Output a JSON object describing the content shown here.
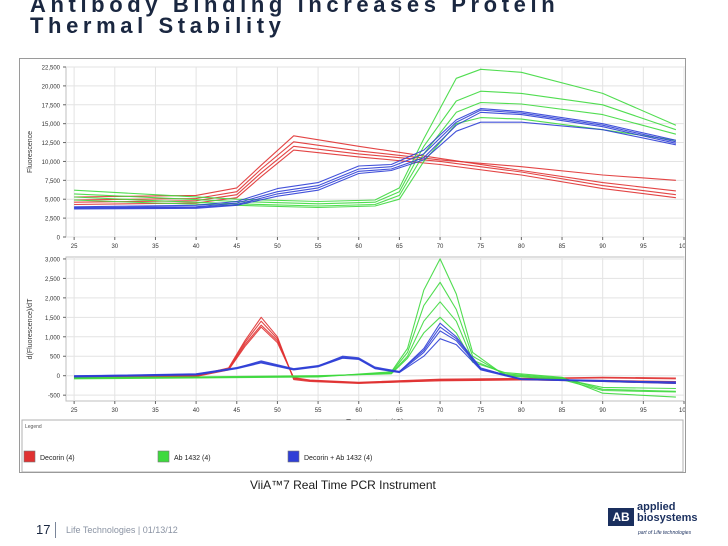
{
  "slide": {
    "title_line1": "Antibody Binding increases Protein",
    "title_line2": "Thermal Stability",
    "caption": "ViiA™7 Real Time PCR Instrument",
    "page_number": "17",
    "footer_text": "Life Technologies | 01/13/12",
    "logo_box": "AB",
    "logo_word1": "applied",
    "logo_word2": "biosystems",
    "logo_sub": "part of Life technologies"
  },
  "legend": {
    "title": "Legend",
    "entries": [
      "Decorin (4)",
      "Ab 1432 (4)",
      "Decorin + Ab 1432 (4)"
    ]
  },
  "colors": {
    "Decorin (4)": "#e03131",
    "Ab 1432 (4)": "#3ed93e",
    "Decorin + Ab 1432 (4)": "#2f3fd6"
  },
  "chart_data": [
    {
      "type": "line",
      "title": "",
      "xlabel": "",
      "ylabel": "Fluorescence",
      "xlim": [
        24,
        100
      ],
      "ylim": [
        0,
        22500
      ],
      "xticks": [
        25,
        30,
        35,
        40,
        45,
        50,
        55,
        60,
        65,
        70,
        75,
        80,
        85,
        90,
        95,
        100
      ],
      "yticks": [
        0,
        2500,
        5000,
        7500,
        10000,
        12500,
        15000,
        17500,
        20000,
        22500
      ],
      "ytick_labels": [
        "0",
        "2,500",
        "5,000",
        "7,500",
        "10,000",
        "12,500",
        "15,000",
        "17,500",
        "20,000",
        "22,500"
      ],
      "grid": true,
      "series": [
        {
          "name": "Decorin (4)",
          "x": [
            25,
            40,
            45,
            48,
            52,
            60,
            70,
            80,
            90,
            99
          ],
          "y": [
            5300,
            5500,
            6500,
            9500,
            13400,
            12000,
            10400,
            8800,
            7200,
            6100
          ]
        },
        {
          "name": "Decorin (4)",
          "x": [
            25,
            40,
            45,
            48,
            52,
            60,
            70,
            80,
            90,
            99
          ],
          "y": [
            4900,
            5100,
            6000,
            9000,
            12600,
            11400,
            10200,
            9300,
            8200,
            7500
          ]
        },
        {
          "name": "Decorin (4)",
          "x": [
            25,
            40,
            45,
            48,
            52,
            60,
            70,
            80,
            90,
            99
          ],
          "y": [
            4600,
            4800,
            5600,
            8500,
            12000,
            11000,
            10000,
            8600,
            6800,
            5600
          ]
        },
        {
          "name": "Decorin (4)",
          "x": [
            25,
            40,
            45,
            48,
            52,
            60,
            70,
            80,
            90,
            99
          ],
          "y": [
            4300,
            4500,
            5200,
            8000,
            11500,
            10600,
            9600,
            8200,
            6400,
            5200
          ]
        },
        {
          "name": "Ab 1432 (4)",
          "x": [
            25,
            35,
            45,
            55,
            62,
            65,
            68,
            72,
            75,
            80,
            90,
            99
          ],
          "y": [
            6200,
            5600,
            5000,
            4700,
            4900,
            6500,
            13000,
            21000,
            22200,
            21800,
            19000,
            14800
          ]
        },
        {
          "name": "Ab 1432 (4)",
          "x": [
            25,
            35,
            45,
            55,
            62,
            65,
            68,
            72,
            75,
            80,
            90,
            99
          ],
          "y": [
            5700,
            5200,
            4700,
            4400,
            4600,
            6000,
            12000,
            18000,
            19300,
            19000,
            17500,
            14200
          ]
        },
        {
          "name": "Ab 1432 (4)",
          "x": [
            25,
            35,
            45,
            55,
            62,
            65,
            68,
            72,
            75,
            80,
            90,
            99
          ],
          "y": [
            5300,
            4800,
            4400,
            4100,
            4300,
            5500,
            11000,
            16500,
            17800,
            17600,
            16200,
            13600
          ]
        },
        {
          "name": "Ab 1432 (4)",
          "x": [
            25,
            35,
            45,
            55,
            62,
            65,
            68,
            72,
            75,
            80,
            90,
            99
          ],
          "y": [
            4900,
            4500,
            4200,
            3900,
            4100,
            5000,
            10000,
            15000,
            15800,
            15600,
            14200,
            12800
          ]
        },
        {
          "name": "Decorin + Ab 1432 (4)",
          "x": [
            25,
            40,
            45,
            50,
            55,
            60,
            64,
            68,
            72,
            75,
            80,
            90,
            99
          ],
          "y": [
            4000,
            4200,
            4700,
            6400,
            7200,
            9400,
            9600,
            11500,
            15500,
            17000,
            16600,
            15000,
            12800
          ]
        },
        {
          "name": "Decorin + Ab 1432 (4)",
          "x": [
            25,
            40,
            45,
            50,
            55,
            60,
            64,
            68,
            72,
            75,
            80,
            90,
            99
          ],
          "y": [
            3900,
            4000,
            4500,
            6000,
            6800,
            9000,
            9300,
            11000,
            15200,
            16800,
            16400,
            14800,
            12600
          ]
        },
        {
          "name": "Decorin + Ab 1432 (4)",
          "x": [
            25,
            40,
            45,
            50,
            55,
            60,
            64,
            68,
            72,
            75,
            80,
            90,
            99
          ],
          "y": [
            3800,
            3900,
            4300,
            5700,
            6500,
            8700,
            9000,
            10500,
            14800,
            16500,
            16200,
            14600,
            12400
          ]
        },
        {
          "name": "Decorin + Ab 1432 (4)",
          "x": [
            25,
            40,
            45,
            50,
            55,
            60,
            64,
            68,
            72,
            75,
            80,
            90,
            99
          ],
          "y": [
            3700,
            3800,
            4200,
            5400,
            6200,
            8400,
            8800,
            10200,
            14000,
            15200,
            15200,
            14200,
            12200
          ]
        }
      ]
    },
    {
      "type": "line",
      "title": "",
      "xlabel": "Temperature (°C)",
      "ylabel": "d(Fluorescence)/dT",
      "xlim": [
        24,
        100
      ],
      "ylim": [
        -650,
        3050
      ],
      "xticks": [
        25,
        30,
        35,
        40,
        45,
        50,
        55,
        60,
        65,
        70,
        75,
        80,
        85,
        90,
        95,
        100
      ],
      "yticks": [
        -500,
        0,
        500,
        1000,
        1500,
        2000,
        2500,
        3000
      ],
      "ytick_labels": [
        "-500",
        "0",
        "500",
        "1,000",
        "1,500",
        "2,000",
        "2,500",
        "3,000"
      ],
      "grid": true,
      "series": [
        {
          "name": "Decorin (4)",
          "x": [
            25,
            40,
            44,
            46,
            48,
            50,
            52,
            54,
            60,
            70,
            80,
            90,
            99
          ],
          "y": [
            -30,
            0,
            200,
            900,
            1500,
            1000,
            -100,
            -150,
            -200,
            -120,
            -100,
            -150,
            -200
          ]
        },
        {
          "name": "Decorin (4)",
          "x": [
            25,
            40,
            44,
            46,
            48,
            50,
            52,
            54,
            60,
            70,
            80,
            90,
            99
          ],
          "y": [
            -40,
            -10,
            180,
            850,
            1400,
            950,
            -80,
            -120,
            -180,
            -100,
            -80,
            -60,
            -80
          ]
        },
        {
          "name": "Decorin (4)",
          "x": [
            25,
            40,
            44,
            46,
            48,
            50,
            52,
            54,
            60,
            70,
            80,
            90,
            99
          ],
          "y": [
            -20,
            10,
            160,
            800,
            1300,
            900,
            -60,
            -130,
            -190,
            -130,
            -110,
            -120,
            -150
          ]
        },
        {
          "name": "Decorin (4)",
          "x": [
            25,
            40,
            44,
            46,
            48,
            50,
            52,
            54,
            60,
            70,
            80,
            90,
            99
          ],
          "y": [
            -50,
            -20,
            150,
            750,
            1250,
            850,
            -50,
            -110,
            -170,
            -90,
            -70,
            -40,
            -60
          ]
        },
        {
          "name": "Ab 1432 (4)",
          "x": [
            25,
            40,
            55,
            64,
            66,
            68,
            70,
            72,
            74,
            78,
            85,
            90,
            99
          ],
          "y": [
            -80,
            -60,
            -30,
            100,
            700,
            2200,
            3000,
            2100,
            600,
            0,
            -100,
            -380,
            -420
          ]
        },
        {
          "name": "Ab 1432 (4)",
          "x": [
            25,
            40,
            55,
            64,
            66,
            68,
            70,
            72,
            74,
            78,
            85,
            90,
            99
          ],
          "y": [
            -60,
            -50,
            -20,
            80,
            600,
            1800,
            2400,
            1700,
            500,
            20,
            -80,
            -300,
            -330
          ]
        },
        {
          "name": "Ab 1432 (4)",
          "x": [
            25,
            40,
            55,
            64,
            66,
            68,
            70,
            72,
            74,
            78,
            85,
            90,
            99
          ],
          "y": [
            -70,
            -40,
            -10,
            60,
            500,
            1400,
            1900,
            1400,
            400,
            50,
            -60,
            -350,
            -400
          ]
        },
        {
          "name": "Ab 1432 (4)",
          "x": [
            25,
            40,
            55,
            64,
            66,
            68,
            70,
            72,
            74,
            78,
            85,
            90,
            99
          ],
          "y": [
            -50,
            -30,
            0,
            50,
            450,
            1100,
            1500,
            1100,
            350,
            80,
            -40,
            -450,
            -550
          ]
        },
        {
          "name": "Decorin + Ab 1432 (4)",
          "x": [
            25,
            40,
            45,
            48,
            52,
            55,
            58,
            60,
            62,
            65,
            68,
            70,
            72,
            75,
            80,
            90,
            99
          ],
          "y": [
            -20,
            40,
            200,
            380,
            180,
            260,
            480,
            440,
            200,
            100,
            700,
            1350,
            1000,
            200,
            -100,
            -150,
            -200
          ]
        },
        {
          "name": "Decorin + Ab 1432 (4)",
          "x": [
            25,
            40,
            45,
            48,
            52,
            55,
            58,
            60,
            62,
            65,
            68,
            70,
            72,
            75,
            80,
            90,
            99
          ],
          "y": [
            -10,
            50,
            210,
            360,
            170,
            250,
            500,
            460,
            220,
            110,
            650,
            1250,
            950,
            180,
            -80,
            -120,
            -180
          ]
        },
        {
          "name": "Decorin + Ab 1432 (4)",
          "x": [
            25,
            40,
            45,
            48,
            52,
            55,
            58,
            60,
            62,
            65,
            68,
            70,
            72,
            75,
            80,
            90,
            99
          ],
          "y": [
            0,
            30,
            190,
            340,
            160,
            240,
            460,
            430,
            190,
            90,
            600,
            1150,
            900,
            160,
            -90,
            -140,
            -160
          ]
        },
        {
          "name": "Decorin + Ab 1432 (4)",
          "x": [
            25,
            40,
            45,
            48,
            52,
            55,
            58,
            60,
            62,
            65,
            68,
            70,
            72,
            75,
            80,
            90,
            99
          ],
          "y": [
            -30,
            20,
            180,
            330,
            150,
            230,
            450,
            420,
            180,
            80,
            500,
            950,
            800,
            150,
            -100,
            -130,
            -170
          ]
        }
      ]
    }
  ]
}
